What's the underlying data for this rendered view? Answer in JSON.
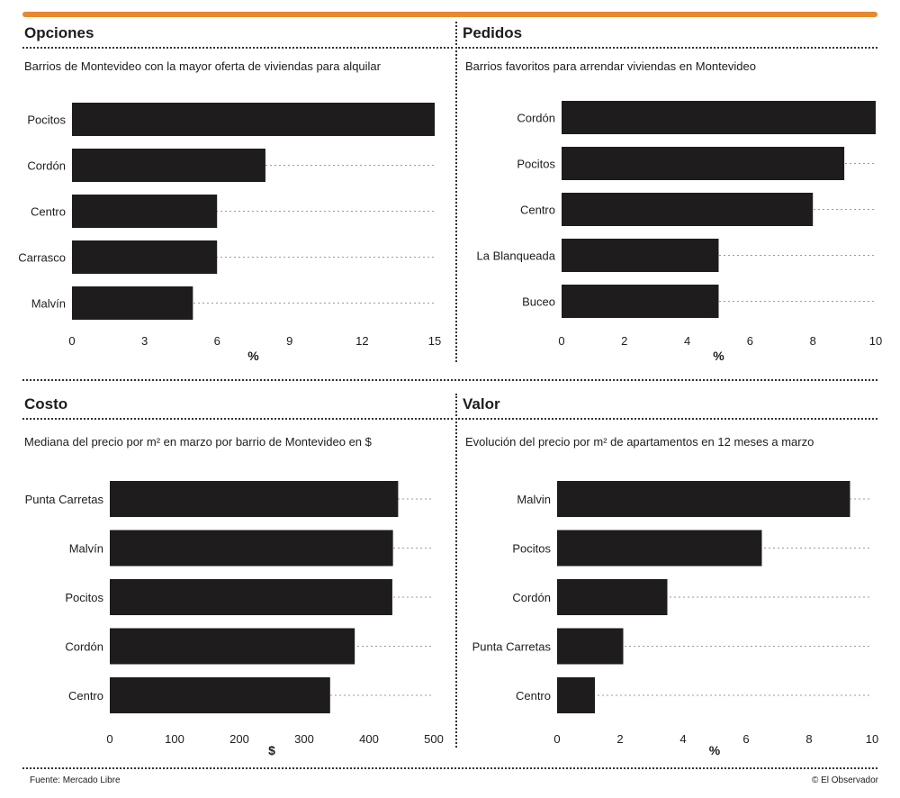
{
  "panels": [
    {
      "title": "Opciones",
      "subtitle": "Barrios de Montevideo con la mayor oferta de viviendas para alquilar",
      "chart_data": {
        "type": "bar",
        "orientation": "horizontal",
        "categories": [
          "Pocitos",
          "Cordón",
          "Centro",
          "Carrasco",
          "Malvín"
        ],
        "values": [
          15,
          8,
          6,
          6,
          5
        ],
        "xticks": [
          "0",
          "3",
          "6",
          "9",
          "12",
          "15"
        ],
        "xlim": [
          0,
          15
        ],
        "xlabel": "%"
      }
    },
    {
      "title": "Pedidos",
      "subtitle": "Barrios favoritos para arrendar viviendas en Montevideo",
      "chart_data": {
        "type": "bar",
        "orientation": "horizontal",
        "categories": [
          "Cordón",
          "Pocitos",
          "Centro",
          "La Blanqueada",
          "Buceo"
        ],
        "values": [
          10,
          9,
          8,
          5,
          5
        ],
        "xticks": [
          "0",
          "2",
          "4",
          "6",
          "8",
          "10"
        ],
        "xlim": [
          0,
          10
        ],
        "xlabel": "%"
      }
    },
    {
      "title": "Costo",
      "subtitle": "Mediana del precio por m² en marzo por barrio de Montevideo en $",
      "chart_data": {
        "type": "bar",
        "orientation": "horizontal",
        "categories": [
          "Punta Carretas",
          "Malvín",
          "Pocitos",
          "Cordón",
          "Centro"
        ],
        "values": [
          445,
          437,
          436,
          378,
          340
        ],
        "xticks": [
          "0",
          "100",
          "200",
          "300",
          "400",
          "500"
        ],
        "xlim": [
          0,
          500
        ],
        "xlabel": "$"
      }
    },
    {
      "title": "Valor",
      "subtitle": "Evolución del precio por m² de apartamentos en 12 meses a marzo",
      "chart_data": {
        "type": "bar",
        "orientation": "horizontal",
        "categories": [
          "Malvin",
          "Pocitos",
          "Cordón",
          "Punta Carretas",
          "Centro"
        ],
        "values": [
          9.3,
          6.5,
          3.5,
          2.1,
          1.2
        ],
        "xticks": [
          "0",
          "2",
          "4",
          "6",
          "8",
          "10"
        ],
        "xlim": [
          0,
          10
        ],
        "xlabel": "%"
      }
    }
  ],
  "footer": {
    "source": "Fuente: Mercado Libre",
    "credit": "© El Observador"
  },
  "colors": {
    "accent": "#e8892e",
    "bar": "#1e1c1d",
    "rule": "#333333"
  }
}
